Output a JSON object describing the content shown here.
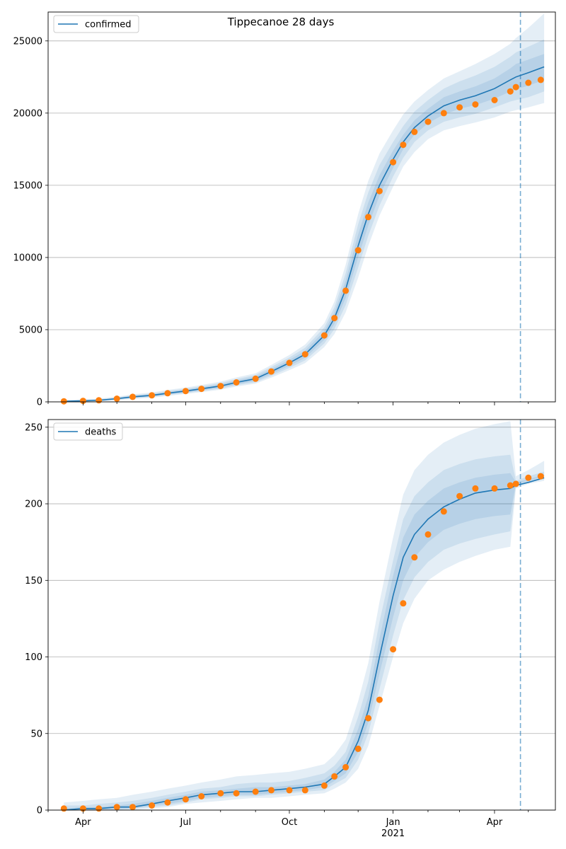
{
  "figure": {
    "title": "Tippecanoe 28 days"
  },
  "x_axis": {
    "tick_labels": [
      "Apr",
      "Jul",
      "Oct",
      "Jan",
      "Apr"
    ],
    "year_label": "2021"
  },
  "chart_data": [
    {
      "type": "line",
      "series": [
        {
          "name": "confirmed",
          "color": "#1f77b4",
          "x": [
            "2020-03-15",
            "2020-04-01",
            "2020-04-15",
            "2020-05-01",
            "2020-05-15",
            "2020-06-01",
            "2020-06-15",
            "2020-07-01",
            "2020-07-15",
            "2020-08-01",
            "2020-08-15",
            "2020-09-01",
            "2020-09-15",
            "2020-10-01",
            "2020-10-15",
            "2020-11-01",
            "2020-11-10",
            "2020-11-20",
            "2020-12-01",
            "2020-12-10",
            "2020-12-20",
            "2021-01-01",
            "2021-01-10",
            "2021-01-20",
            "2021-02-01",
            "2021-02-15",
            "2021-03-01",
            "2021-03-15",
            "2021-04-01",
            "2021-04-15",
            "2021-04-20",
            "2021-05-01",
            "2021-05-15"
          ],
          "values": [
            40,
            70,
            110,
            220,
            350,
            450,
            600,
            750,
            900,
            1100,
            1350,
            1600,
            2100,
            2700,
            3300,
            4600,
            5800,
            7800,
            10800,
            13000,
            15000,
            16800,
            18000,
            19000,
            19800,
            20500,
            20900,
            21200,
            21700,
            22300,
            22500,
            22800,
            23200
          ],
          "bands": {
            "inner": {
              "lower": [
                20,
                40,
                80,
                170,
                290,
                380,
                520,
                660,
                800,
                990,
                1220,
                1450,
                1920,
                2500,
                3050,
                4300,
                5400,
                7200,
                10000,
                12200,
                14300,
                16200,
                17500,
                18500,
                19300,
                19900,
                20300,
                20550,
                21000,
                21500,
                21650,
                21900,
                22300
              ],
              "upper": [
                60,
                100,
                140,
                270,
                410,
                520,
                680,
                840,
                1000,
                1210,
                1480,
                1750,
                2280,
                2900,
                3550,
                4900,
                6200,
                8400,
                11600,
                13800,
                15700,
                17400,
                18500,
                19500,
                20300,
                21100,
                21500,
                21850,
                22400,
                23100,
                23400,
                23700,
                24100
              ]
            },
            "middle": {
              "lower": [
                10,
                25,
                60,
                140,
                250,
                340,
                470,
                610,
                740,
                920,
                1150,
                1360,
                1800,
                2350,
                2870,
                4050,
                5050,
                6700,
                9300,
                11500,
                13600,
                15600,
                16900,
                18000,
                18800,
                19400,
                19700,
                19950,
                20400,
                20800,
                20900,
                21100,
                21500
              ],
              "upper": [
                90,
                130,
                180,
                310,
                460,
                580,
                750,
                910,
                1080,
                1300,
                1580,
                1860,
                2420,
                3070,
                3750,
                5150,
                6550,
                8900,
                12300,
                14500,
                16400,
                18000,
                19100,
                20100,
                20900,
                21700,
                22200,
                22600,
                23200,
                23900,
                24200,
                24600,
                25100
              ]
            },
            "outer": {
              "lower": [
                0,
                10,
                40,
                110,
                200,
                290,
                410,
                550,
                670,
                840,
                1060,
                1260,
                1680,
                2200,
                2680,
                3800,
                4700,
                6200,
                8600,
                10800,
                12900,
                14900,
                16300,
                17300,
                18200,
                18800,
                19100,
                19350,
                19700,
                20100,
                20200,
                20400,
                20700
              ],
              "upper": [
                120,
                170,
                220,
                360,
                520,
                650,
                830,
                990,
                1170,
                1400,
                1690,
                1980,
                2560,
                3250,
                3970,
                5450,
                6950,
                9500,
                13000,
                15300,
                17200,
                18800,
                19900,
                20800,
                21600,
                22400,
                22900,
                23400,
                24100,
                24800,
                25200,
                25900,
                26900
              ]
            }
          }
        },
        {
          "name": "observed_confirmed",
          "color": "#ff7f0e",
          "x": [
            "2020-03-15",
            "2020-04-01",
            "2020-04-15",
            "2020-05-01",
            "2020-05-15",
            "2020-06-01",
            "2020-06-15",
            "2020-07-01",
            "2020-07-15",
            "2020-08-01",
            "2020-08-15",
            "2020-09-01",
            "2020-09-15",
            "2020-10-01",
            "2020-10-15",
            "2020-11-01",
            "2020-11-10",
            "2020-11-20",
            "2020-12-01",
            "2020-12-10",
            "2020-12-20",
            "2021-01-01",
            "2021-01-10",
            "2021-01-20",
            "2021-02-01",
            "2021-02-15",
            "2021-03-01",
            "2021-03-15",
            "2021-04-01",
            "2021-04-15",
            "2021-04-20",
            "2021-05-01",
            "2021-05-12"
          ],
          "values": [
            40,
            70,
            110,
            220,
            350,
            450,
            600,
            750,
            900,
            1100,
            1350,
            1600,
            2100,
            2700,
            3300,
            4600,
            5800,
            7700,
            10500,
            12800,
            14600,
            16600,
            17800,
            18700,
            19400,
            20000,
            20400,
            20600,
            20900,
            21500,
            21800,
            22100,
            22300
          ]
        }
      ],
      "ylim": [
        0,
        27000
      ],
      "yticks": [
        0,
        5000,
        10000,
        15000,
        20000,
        25000
      ],
      "forecast_start": "2021-04-24",
      "grid": "horizontal",
      "legend": "top-left"
    },
    {
      "type": "line",
      "series": [
        {
          "name": "deaths",
          "color": "#1f77b4",
          "x": [
            "2020-03-15",
            "2020-04-01",
            "2020-04-15",
            "2020-05-01",
            "2020-05-15",
            "2020-06-01",
            "2020-06-15",
            "2020-07-01",
            "2020-07-15",
            "2020-08-01",
            "2020-08-15",
            "2020-09-01",
            "2020-09-15",
            "2020-10-01",
            "2020-10-15",
            "2020-11-01",
            "2020-11-10",
            "2020-11-20",
            "2020-12-01",
            "2020-12-10",
            "2020-12-20",
            "2021-01-01",
            "2021-01-10",
            "2021-01-20",
            "2021-02-01",
            "2021-02-15",
            "2021-03-01",
            "2021-03-15",
            "2021-04-01",
            "2021-04-15",
            "2021-04-20",
            "2021-05-01",
            "2021-05-15"
          ],
          "values": [
            0,
            1,
            1,
            2,
            2,
            4,
            6,
            8,
            10,
            11,
            12,
            12,
            13,
            14,
            15,
            17,
            22,
            28,
            45,
            65,
            100,
            140,
            165,
            180,
            190,
            198,
            203,
            207,
            209,
            210,
            212,
            214,
            217
          ],
          "bands": {
            "inner": {
              "lower": [
                0,
                0,
                0,
                1,
                1,
                3,
                4,
                6,
                8,
                9,
                10,
                10,
                11,
                12,
                13,
                15,
                19,
                24,
                38,
                57,
                89,
                126,
                150,
                165,
                175,
                183,
                187,
                190,
                192,
                193,
                213,
                215,
                218
              ],
              "upper": [
                1,
                2,
                2,
                3,
                4,
                6,
                8,
                10,
                12,
                13,
                14,
                15,
                15,
                16,
                17,
                20,
                25,
                33,
                53,
                74,
                112,
                153,
                178,
                193,
                202,
                210,
                214,
                217,
                219,
                220,
                214,
                216,
                219
              ]
            },
            "middle": {
              "lower": [
                0,
                0,
                0,
                0,
                1,
                2,
                3,
                5,
                7,
                8,
                9,
                9,
                10,
                11,
                12,
                13,
                17,
                21,
                33,
                50,
                79,
                114,
                137,
                152,
                162,
                170,
                174,
                177,
                180,
                182,
                212,
                214,
                216
              ],
              "upper": [
                3,
                3,
                4,
                5,
                6,
                8,
                10,
                12,
                14,
                15,
                17,
                18,
                18,
                19,
                21,
                24,
                29,
                38,
                61,
                84,
                123,
                163,
                190,
                205,
                214,
                222,
                226,
                229,
                231,
                232,
                215,
                218,
                221
              ]
            },
            "outer": {
              "lower": [
                0,
                0,
                0,
                0,
                0,
                1,
                2,
                4,
                5,
                6,
                7,
                8,
                8,
                9,
                10,
                11,
                14,
                18,
                27,
                42,
                68,
                100,
                122,
                138,
                150,
                157,
                162,
                166,
                170,
                172,
                210,
                213,
                215
              ],
              "upper": [
                5,
                6,
                7,
                8,
                10,
                12,
                14,
                16,
                18,
                20,
                22,
                23,
                24,
                25,
                27,
                30,
                36,
                46,
                71,
                96,
                136,
                178,
                206,
                222,
                232,
                240,
                245,
                249,
                252,
                254,
                218,
                222,
                228
              ]
            }
          }
        },
        {
          "name": "observed_deaths",
          "color": "#ff7f0e",
          "x": [
            "2020-03-15",
            "2020-04-01",
            "2020-04-15",
            "2020-05-01",
            "2020-05-15",
            "2020-06-01",
            "2020-06-15",
            "2020-07-01",
            "2020-07-15",
            "2020-08-01",
            "2020-08-15",
            "2020-09-01",
            "2020-09-15",
            "2020-10-01",
            "2020-10-15",
            "2020-11-01",
            "2020-11-10",
            "2020-11-20",
            "2020-12-01",
            "2020-12-10",
            "2020-12-20",
            "2021-01-01",
            "2021-01-10",
            "2021-01-20",
            "2021-02-01",
            "2021-02-15",
            "2021-03-01",
            "2021-03-15",
            "2021-04-01",
            "2021-04-15",
            "2021-04-20",
            "2021-05-01",
            "2021-05-12"
          ],
          "values": [
            1,
            1,
            1,
            2,
            2,
            3,
            5,
            7,
            9,
            11,
            11,
            12,
            13,
            13,
            13,
            16,
            22,
            28,
            40,
            60,
            72,
            105,
            135,
            165,
            180,
            195,
            205,
            210,
            210,
            212,
            213,
            217,
            218
          ]
        }
      ],
      "ylim": [
        0,
        255
      ],
      "yticks": [
        0,
        50,
        100,
        150,
        200,
        250
      ],
      "forecast_start": "2021-04-24",
      "grid": "horizontal",
      "legend": "top-left"
    }
  ]
}
